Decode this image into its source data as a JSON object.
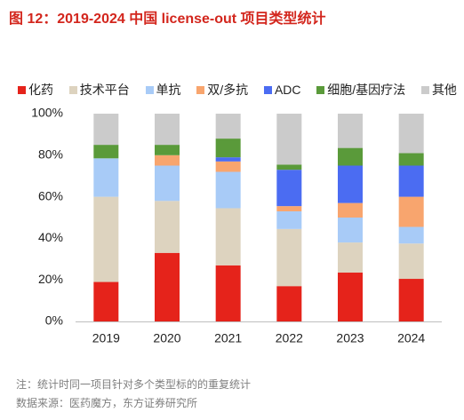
{
  "figure": {
    "note": "注：统计时同一项目针对多个类型标的的重复统计",
    "source": "数据来源：医药魔方，东方证券研究所"
  },
  "chart_data": {
    "type": "bar",
    "stacked": true,
    "percent_stacked": true,
    "title": "图 12：2019-2024 中国 license-out 项目类型统计",
    "xlabel": "",
    "ylabel": "",
    "categories": [
      "2019",
      "2020",
      "2021",
      "2022",
      "2023",
      "2024"
    ],
    "ylim": [
      0,
      100
    ],
    "y_ticks": [
      0,
      20,
      40,
      60,
      80,
      100
    ],
    "y_tick_labels": [
      "0%",
      "20%",
      "40%",
      "60%",
      "80%",
      "100%"
    ],
    "grid": false,
    "legend_position": "top",
    "series": [
      {
        "name": "化药",
        "color": "#e5231b",
        "values": [
          19,
          33,
          27,
          17,
          23.5,
          20.5
        ]
      },
      {
        "name": "技术平台",
        "color": "#ddd3bf",
        "values": [
          41,
          25,
          27.5,
          27.5,
          14.5,
          17
        ]
      },
      {
        "name": "单抗",
        "color": "#a8cbf7",
        "values": [
          18.5,
          17,
          17.5,
          8.5,
          12,
          8
        ]
      },
      {
        "name": "双/多抗",
        "color": "#f8a56e",
        "values": [
          0,
          5,
          5,
          2.5,
          7,
          14.5
        ]
      },
      {
        "name": "ADC",
        "color": "#4b6cf2",
        "values": [
          0,
          0,
          2,
          17.5,
          18,
          15
        ]
      },
      {
        "name": "细胞/基因疗法",
        "color": "#5a9a3a",
        "values": [
          6.5,
          5,
          9,
          2.5,
          8.5,
          6
        ]
      },
      {
        "name": "其他",
        "color": "#cbcbcb",
        "values": [
          15,
          15,
          12,
          24.5,
          16.5,
          19
        ]
      }
    ]
  }
}
